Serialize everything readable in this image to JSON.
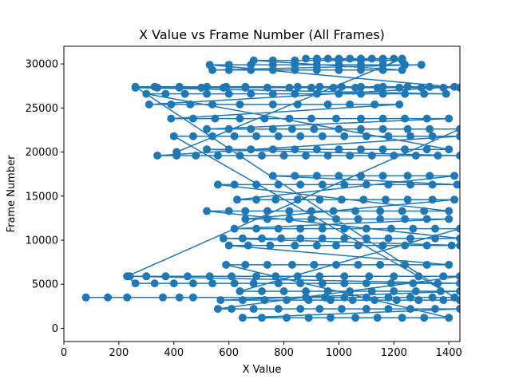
{
  "chart_data": {
    "type": "scatter",
    "title": "X Value vs Frame Number (All Frames)",
    "xlabel": "X Value",
    "ylabel": "Frame Number",
    "xlim": [
      0,
      1440
    ],
    "ylim": [
      -1500,
      32000
    ],
    "xticks": [
      0,
      200,
      400,
      600,
      800,
      1000,
      1200,
      1400
    ],
    "yticks": [
      0,
      5000,
      10000,
      15000,
      20000,
      25000,
      30000
    ],
    "grid": false,
    "legend": "none",
    "color": "#1f77b4",
    "series": [
      {
        "x": [
          80,
          160,
          230,
          360,
          420,
          470,
          880,
          950,
          1020,
          1100,
          1180,
          1260,
          1340,
          1420,
          260,
          330,
          420,
          520,
          590,
          660,
          850,
          930,
          1010,
          1080,
          1160,
          1250,
          1330,
          1420,
          310,
          390,
          460,
          540,
          640,
          760,
          850,
          960,
          1040,
          1130,
          1220,
          390,
          470,
          550,
          640,
          730,
          820,
          900,
          990,
          1080,
          1160,
          1240,
          1320,
          1400,
          520,
          600,
          680,
          760,
          830,
          910,
          1000,
          1080,
          1160,
          1250,
          1330,
          1440,
          230,
          260,
          330,
          400,
          470,
          540,
          620,
          690,
          780,
          860,
          940,
          1020,
          1100,
          1190,
          1270,
          1360,
          1440,
          240,
          300,
          370,
          450,
          530,
          610,
          700,
          770,
          850,
          930,
          1020,
          1110,
          1200,
          1290,
          1380,
          1440,
          560,
          610,
          690,
          780,
          860,
          930,
          1010,
          1100,
          1180,
          1260,
          1350,
          1440,
          650,
          720,
          810,
          890,
          970,
          1060,
          1140,
          1230,
          1310,
          1400,
          590,
          660,
          740,
          830,
          910,
          990,
          1070,
          1150,
          1240,
          1320,
          1400,
          600,
          670,
          750,
          840,
          920,
          990,
          1070,
          1160,
          1240,
          1320,
          1410,
          1440,
          580,
          650,
          720,
          790,
          860,
          940,
          1020,
          1100,
          1180,
          1260,
          1350,
          1440,
          520,
          600,
          660,
          740,
          820,
          900,
          980,
          1060,
          1150,
          1230,
          1310,
          1400,
          560,
          620,
          700,
          780,
          860,
          940,
          1020,
          1100,
          1180,
          1260,
          1340,
          1430,
          760,
          840,
          920,
          1000,
          1080,
          1160,
          1250,
          1330,
          1420,
          630,
          700,
          770,
          850,
          930,
          1010,
          1090,
          1170,
          1250,
          1340,
          1420,
          660,
          740,
          820,
          900,
          990,
          1070,
          1150,
          1240,
          1320,
          1400,
          620,
          700,
          780,
          860,
          940,
          1020,
          1100,
          1190,
          1270,
          1350,
          1440,
          640,
          720,
          800,
          880,
          960,
          1040,
          1120,
          1200,
          1280,
          1370,
          1440,
          570,
          650,
          730,
          810,
          890,
          970,
          1050,
          1130,
          1210,
          1290,
          1380,
          1440,
          400,
          470,
          540,
          620,
          700,
          780,
          860,
          940,
          1020,
          1100,
          1180,
          1260,
          1340,
          1440,
          340,
          410,
          480,
          560,
          640,
          720,
          800,
          880,
          960,
          1040,
          1120,
          1200,
          1280,
          1360,
          1440,
          520,
          600,
          680,
          760,
          840,
          920,
          1000,
          1080,
          1160,
          1240,
          1320,
          1400,
          300,
          370,
          440,
          520,
          600,
          680,
          760,
          840,
          920,
          1000,
          1080,
          1160,
          1240,
          1310,
          1390,
          260,
          340,
          420,
          500,
          580,
          660,
          740,
          820,
          900,
          980,
          1060,
          1140,
          1220,
          1300,
          1380,
          1440,
          530,
          600,
          680,
          760,
          840,
          920,
          1000,
          1080,
          1160,
          1240,
          1300,
          540,
          600,
          680,
          760,
          840,
          920,
          1000,
          1080,
          1160,
          1230,
          690,
          760,
          840,
          920,
          1000,
          1080,
          1160,
          1230,
          880,
          920,
          960,
          1000,
          1040,
          1080,
          1120,
          1160,
          1200,
          1230,
          410
        ],
        "y": [
          3500,
          3500,
          3500,
          3500,
          3500,
          3500,
          3500,
          3500,
          3500,
          3500,
          3500,
          3500,
          3500,
          3500,
          27400,
          27400,
          27400,
          27400,
          27400,
          27400,
          27400,
          27400,
          27400,
          27400,
          27400,
          27400,
          27400,
          27400,
          25400,
          25400,
          25400,
          25400,
          25400,
          25400,
          25400,
          25400,
          25400,
          25400,
          25400,
          23800,
          23800,
          23800,
          23800,
          23800,
          23800,
          23800,
          23800,
          23800,
          23800,
          23800,
          23800,
          23800,
          22600,
          22600,
          22600,
          22600,
          22600,
          22600,
          22600,
          22600,
          22600,
          22600,
          22600,
          22600,
          5900,
          5100,
          5100,
          5100,
          5100,
          5100,
          5100,
          5100,
          5100,
          5100,
          5100,
          5100,
          5100,
          5100,
          5100,
          5100,
          5100,
          5900,
          5900,
          5900,
          5900,
          5900,
          5900,
          5900,
          5900,
          5900,
          5900,
          5900,
          5900,
          5900,
          5900,
          5900,
          5900,
          2200,
          2200,
          2200,
          2200,
          2200,
          2200,
          2200,
          2200,
          2200,
          2200,
          2200,
          2200,
          1200,
          1200,
          1200,
          1200,
          1200,
          1200,
          1200,
          1200,
          1200,
          1200,
          7200,
          7200,
          7200,
          7200,
          7200,
          7200,
          7200,
          7200,
          7200,
          7200,
          7200,
          9400,
          9400,
          9400,
          9400,
          9400,
          9400,
          9400,
          9400,
          9400,
          9400,
          9400,
          9400,
          10200,
          10200,
          10200,
          10200,
          10200,
          10200,
          10200,
          10200,
          10200,
          10200,
          10200,
          10200,
          13300,
          13300,
          13300,
          13300,
          13300,
          13300,
          13300,
          13300,
          13300,
          13300,
          13300,
          13300,
          16300,
          16300,
          16300,
          16300,
          16300,
          16300,
          16300,
          16300,
          16300,
          16300,
          16300,
          16300,
          17300,
          17300,
          17300,
          17300,
          17300,
          17300,
          17300,
          17300,
          17300,
          14600,
          14600,
          14600,
          14600,
          14600,
          14600,
          14600,
          14600,
          14600,
          14600,
          14600,
          12400,
          12400,
          12400,
          12400,
          12400,
          12400,
          12400,
          12400,
          12400,
          12400,
          11300,
          11300,
          11300,
          11300,
          11300,
          11300,
          11300,
          11300,
          11300,
          11300,
          11300,
          4200,
          4200,
          4200,
          4200,
          4200,
          4200,
          4200,
          4200,
          4200,
          4200,
          4200,
          3200,
          3200,
          3200,
          3200,
          3200,
          3200,
          3200,
          3200,
          3200,
          3200,
          3200,
          3200,
          21800,
          21800,
          21800,
          21800,
          21800,
          21800,
          21800,
          21800,
          21800,
          21800,
          21800,
          21800,
          21800,
          21800,
          19600,
          19600,
          19600,
          19600,
          19600,
          19600,
          19600,
          19600,
          19600,
          19600,
          19600,
          19600,
          19600,
          19600,
          19600,
          20300,
          20300,
          20300,
          20300,
          20300,
          20300,
          20300,
          20300,
          20300,
          20300,
          20300,
          20300,
          26600,
          26600,
          26600,
          26600,
          26600,
          26600,
          26600,
          26600,
          26600,
          26600,
          26600,
          26600,
          26600,
          26600,
          26600,
          27300,
          27300,
          27300,
          27300,
          27300,
          27300,
          27300,
          27300,
          27300,
          27300,
          27300,
          27300,
          27300,
          27300,
          27300,
          27300,
          29900,
          29900,
          29900,
          29900,
          29900,
          29900,
          29900,
          29900,
          29900,
          29900,
          29900,
          29300,
          29300,
          29300,
          29300,
          29300,
          29300,
          29300,
          29300,
          29300,
          29300,
          30400,
          30400,
          30400,
          30400,
          30400,
          30400,
          30400,
          30400,
          30600,
          30600,
          30600,
          30600,
          30600,
          30600,
          30600,
          30600,
          30600,
          30600,
          20000
        ]
      }
    ]
  }
}
